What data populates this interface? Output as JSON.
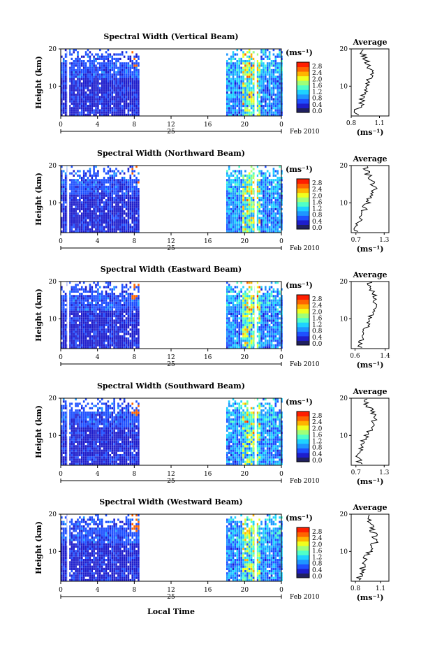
{
  "figure": {
    "xlabel": "Local Time",
    "ylabel": "Height (km)",
    "unit_label": "(ms⁻¹)",
    "avg_title": "Average",
    "date_day": "25",
    "date_month_year": "Feb 2010",
    "time_ticks": [
      "0",
      "4",
      "8",
      "12",
      "16",
      "20",
      "0"
    ],
    "height_ticks": [
      "20",
      "10"
    ],
    "colorbar_ticks": [
      "2.8",
      "2.4",
      "2.0",
      "1.6",
      "1.2",
      "0.8",
      "0.4",
      "0.0"
    ],
    "colors": {
      "low": "#1e3cff",
      "mid": "#1ec8ff",
      "high": "#ffdc00",
      "max": "#ff1e00",
      "colormap": [
        "#202060",
        "#1e1ecc",
        "#1e50ff",
        "#1e96ff",
        "#1ed2ff",
        "#50ffc8",
        "#a0ff78",
        "#f0ff1e",
        "#ffb400",
        "#ff6400",
        "#ff1e00"
      ]
    }
  },
  "chart_data": [
    {
      "type": "heatmap",
      "title": "Spectral Width (Vertical Beam)",
      "xlabel": "Local Time",
      "ylabel": "Height (km)",
      "x_range": [
        0,
        24
      ],
      "y_range": [
        2,
        20
      ],
      "colorbar_range": [
        0.0,
        3.0
      ],
      "data_time_ranges": [
        [
          0,
          8.5
        ],
        [
          18,
          24
        ]
      ],
      "average": {
        "title": "Average",
        "xticks": [
          "0.8",
          "1.1"
        ],
        "xlim": [
          0.8,
          1.2
        ],
        "ylim": [
          2,
          20
        ],
        "height": [
          3,
          5,
          7,
          9,
          11,
          13,
          15,
          17,
          19
        ],
        "value": [
          0.85,
          0.9,
          0.92,
          0.95,
          0.98,
          1.02,
          1.0,
          0.96,
          0.92
        ]
      }
    },
    {
      "type": "heatmap",
      "title": "Spectral Width (Northward Beam)",
      "xlabel": "Local Time",
      "ylabel": "Height (km)",
      "x_range": [
        0,
        24
      ],
      "y_range": [
        2,
        20
      ],
      "colorbar_range": [
        0.0,
        3.0
      ],
      "data_time_ranges": [
        [
          0,
          8.5
        ],
        [
          18,
          24
        ]
      ],
      "average": {
        "title": "Average",
        "xticks": [
          "0.7",
          "1.3"
        ],
        "xlim": [
          0.6,
          1.4
        ],
        "ylim": [
          2,
          20
        ],
        "height": [
          3,
          5,
          7,
          9,
          11,
          13,
          15,
          17,
          19
        ],
        "value": [
          0.72,
          0.76,
          0.82,
          0.9,
          1.0,
          1.1,
          1.05,
          0.98,
          0.9
        ]
      }
    },
    {
      "type": "heatmap",
      "title": "Spectral Width (Eastward Beam)",
      "xlabel": "Local Time",
      "ylabel": "Height (km)",
      "x_range": [
        0,
        24
      ],
      "y_range": [
        2,
        20
      ],
      "colorbar_range": [
        0.0,
        3.0
      ],
      "data_time_ranges": [
        [
          0,
          8.5
        ],
        [
          18,
          24
        ]
      ],
      "average": {
        "title": "Average",
        "xticks": [
          "0.6",
          "1.4"
        ],
        "xlim": [
          0.5,
          1.5
        ],
        "ylim": [
          2,
          20
        ],
        "height": [
          3,
          5,
          7,
          9,
          11,
          13,
          15,
          17,
          19
        ],
        "value": [
          0.75,
          0.8,
          0.86,
          0.94,
          1.02,
          1.1,
          1.15,
          1.1,
          1.0
        ]
      }
    },
    {
      "type": "heatmap",
      "title": "Spectral Width (Southward Beam)",
      "xlabel": "Local Time",
      "ylabel": "Height (km)",
      "x_range": [
        0,
        24
      ],
      "y_range": [
        2,
        20
      ],
      "colorbar_range": [
        0.0,
        3.0
      ],
      "data_time_ranges": [
        [
          0,
          8.5
        ],
        [
          18,
          24
        ]
      ],
      "average": {
        "title": "Average",
        "xticks": [
          "0.7",
          "1.3"
        ],
        "xlim": [
          0.6,
          1.4
        ],
        "ylim": [
          2,
          20
        ],
        "height": [
          3,
          5,
          7,
          9,
          11,
          13,
          15,
          17,
          19
        ],
        "value": [
          0.78,
          0.75,
          0.8,
          0.86,
          0.98,
          1.08,
          1.1,
          1.0,
          0.9
        ]
      }
    },
    {
      "type": "heatmap",
      "title": "Spectral Width (Westward Beam)",
      "xlabel": "Local Time",
      "ylabel": "Height (km)",
      "x_range": [
        0,
        24
      ],
      "y_range": [
        2,
        20
      ],
      "colorbar_range": [
        0.0,
        3.0
      ],
      "data_time_ranges": [
        [
          0,
          8.5
        ],
        [
          18,
          24
        ]
      ],
      "average": {
        "title": "Average",
        "xticks": [
          "0.8",
          "1.1"
        ],
        "xlim": [
          0.75,
          1.2
        ],
        "ylim": [
          2,
          20
        ],
        "height": [
          3,
          5,
          7,
          9,
          11,
          13,
          15,
          17,
          19
        ],
        "value": [
          0.85,
          0.88,
          0.9,
          0.95,
          1.0,
          1.05,
          1.02,
          0.98,
          0.95
        ]
      }
    }
  ]
}
